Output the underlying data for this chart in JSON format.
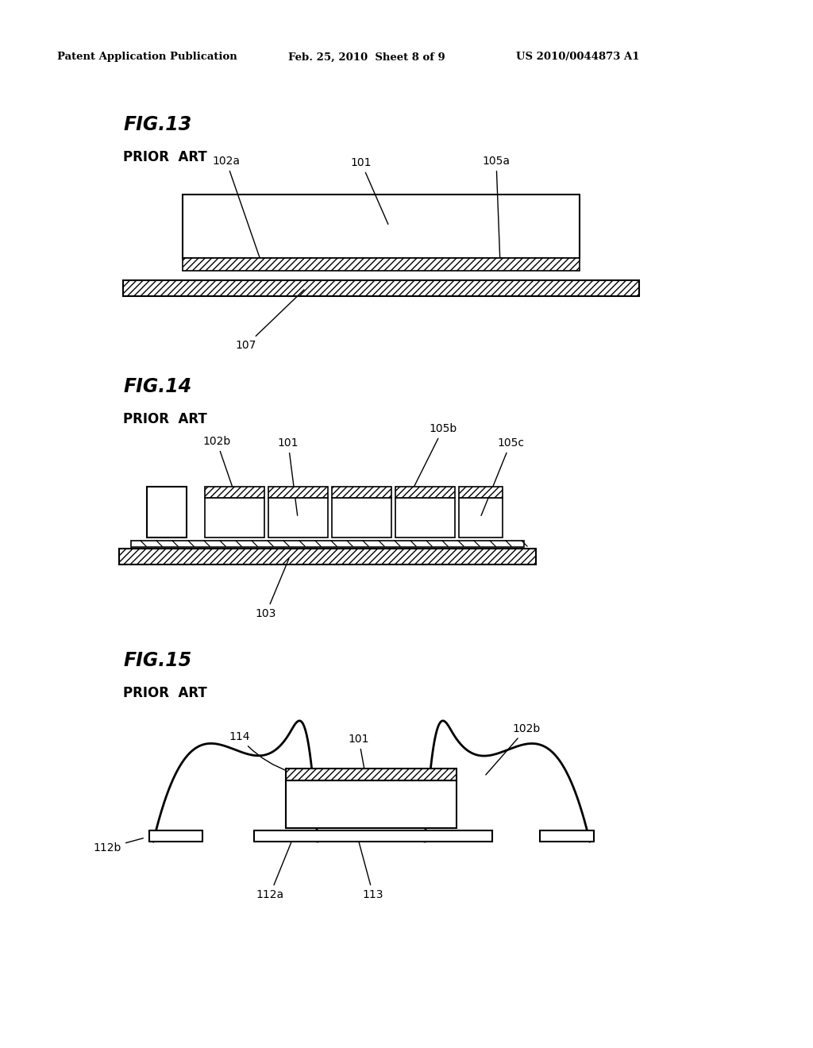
{
  "bg_color": "#ffffff",
  "header_left": "Patent Application Publication",
  "header_mid": "Feb. 25, 2010  Sheet 8 of 9",
  "header_right": "US 2010/0044873 A1",
  "fig13_title": "FIG.13",
  "fig14_title": "FIG.14",
  "fig15_title": "FIG.15",
  "prior_art": "PRIOR  ART",
  "line_color": "#000000"
}
